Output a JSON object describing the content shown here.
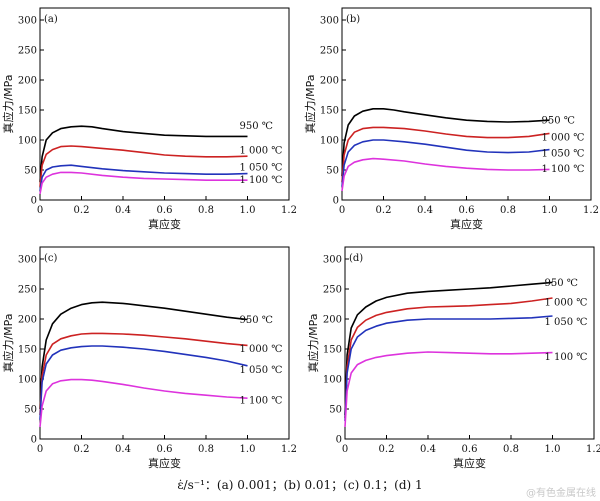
{
  "caption": "ε̇/s⁻¹：(a) 0.001；(b) 0.01；(c) 0.1；(d) 1",
  "watermark": "@有色金属在线",
  "chart_data": [
    {
      "type": "line",
      "panel_label": "(a)",
      "xlabel": "真应变",
      "ylabel": "真应力/MPa",
      "xlim": [
        0,
        1.2
      ],
      "ylim": [
        0,
        320
      ],
      "xticks": [
        "0",
        "0.2",
        "0.4",
        "0.6",
        "0.8",
        "1.0",
        "1.2"
      ],
      "yticks": [
        "0",
        "50",
        "100",
        "150",
        "200",
        "250",
        "300"
      ],
      "series": [
        {
          "name": "950 ℃",
          "color": "#000000",
          "x": [
            0,
            0.01,
            0.03,
            0.06,
            0.1,
            0.15,
            0.2,
            0.25,
            0.3,
            0.4,
            0.5,
            0.6,
            0.7,
            0.8,
            0.9,
            1.0
          ],
          "y": [
            30,
            72,
            100,
            112,
            119,
            122,
            123,
            122,
            119,
            114,
            111,
            108,
            107,
            106,
            106,
            106
          ]
        },
        {
          "name": "1 000 ℃",
          "color": "#cc2222",
          "x": [
            0,
            0.01,
            0.03,
            0.06,
            0.1,
            0.15,
            0.2,
            0.3,
            0.4,
            0.5,
            0.6,
            0.7,
            0.8,
            0.9,
            1.0
          ],
          "y": [
            22,
            58,
            76,
            84,
            89,
            90,
            89,
            86,
            83,
            79,
            75,
            73,
            72,
            72,
            73
          ]
        },
        {
          "name": "1 050 ℃",
          "color": "#2233bb",
          "x": [
            0,
            0.01,
            0.03,
            0.06,
            0.1,
            0.15,
            0.2,
            0.3,
            0.4,
            0.5,
            0.6,
            0.7,
            0.8,
            0.9,
            1.0
          ],
          "y": [
            15,
            38,
            50,
            55,
            57,
            58,
            56,
            52,
            49,
            47,
            45,
            44,
            43,
            43,
            44
          ]
        },
        {
          "name": "1 100 ℃",
          "color": "#dd33dd",
          "x": [
            0,
            0.01,
            0.03,
            0.06,
            0.1,
            0.15,
            0.2,
            0.3,
            0.4,
            0.5,
            0.6,
            0.7,
            0.8,
            0.9,
            1.0
          ],
          "y": [
            10,
            28,
            38,
            43,
            46,
            46,
            45,
            41,
            38,
            36,
            35,
            34,
            33,
            33,
            33
          ]
        }
      ]
    },
    {
      "type": "line",
      "panel_label": "(b)",
      "xlabel": "真应变",
      "ylabel": "真应力/MPa",
      "xlim": [
        0,
        1.2
      ],
      "ylim": [
        0,
        320
      ],
      "xticks": [
        "0",
        "0.2",
        "0.4",
        "0.6",
        "0.8",
        "1.0",
        "1.2"
      ],
      "yticks": [
        "0",
        "50",
        "100",
        "150",
        "200",
        "250",
        "300"
      ],
      "series": [
        {
          "name": "950 ℃",
          "color": "#000000",
          "x": [
            0,
            0.01,
            0.03,
            0.06,
            0.1,
            0.15,
            0.2,
            0.25,
            0.3,
            0.4,
            0.5,
            0.6,
            0.7,
            0.8,
            0.9,
            1.0
          ],
          "y": [
            40,
            95,
            125,
            140,
            148,
            152,
            152,
            150,
            147,
            142,
            137,
            133,
            131,
            130,
            131,
            133
          ]
        },
        {
          "name": "1 000 ℃",
          "color": "#cc2222",
          "x": [
            0,
            0.01,
            0.03,
            0.06,
            0.1,
            0.15,
            0.2,
            0.3,
            0.4,
            0.5,
            0.6,
            0.7,
            0.8,
            0.9,
            1.0
          ],
          "y": [
            30,
            75,
            100,
            113,
            119,
            121,
            121,
            119,
            115,
            110,
            106,
            104,
            104,
            106,
            111
          ]
        },
        {
          "name": "1 050 ℃",
          "color": "#2233bb",
          "x": [
            0,
            0.01,
            0.03,
            0.06,
            0.1,
            0.15,
            0.2,
            0.3,
            0.4,
            0.5,
            0.6,
            0.7,
            0.8,
            0.9,
            1.0
          ],
          "y": [
            22,
            58,
            80,
            91,
            97,
            100,
            100,
            97,
            93,
            88,
            83,
            80,
            79,
            80,
            84
          ]
        },
        {
          "name": "1 100 ℃",
          "color": "#dd33dd",
          "x": [
            0,
            0.01,
            0.03,
            0.06,
            0.1,
            0.15,
            0.2,
            0.3,
            0.4,
            0.5,
            0.6,
            0.7,
            0.8,
            0.9,
            1.0
          ],
          "y": [
            15,
            40,
            56,
            63,
            67,
            69,
            68,
            65,
            60,
            56,
            53,
            51,
            50,
            50,
            51
          ]
        }
      ]
    },
    {
      "type": "line",
      "panel_label": "(c)",
      "xlabel": "真应变",
      "ylabel": "真应力/MPa",
      "xlim": [
        0,
        1.2
      ],
      "ylim": [
        0,
        320
      ],
      "xticks": [
        "0",
        "0.2",
        "0.4",
        "0.6",
        "0.8",
        "1.0",
        "1.2"
      ],
      "yticks": [
        "0",
        "50",
        "100",
        "150",
        "200",
        "250",
        "300"
      ],
      "series": [
        {
          "name": "950 ℃",
          "color": "#000000",
          "x": [
            0,
            0.01,
            0.03,
            0.06,
            0.1,
            0.15,
            0.2,
            0.25,
            0.3,
            0.35,
            0.4,
            0.5,
            0.6,
            0.7,
            0.8,
            0.9,
            1.0
          ],
          "y": [
            50,
            120,
            165,
            192,
            208,
            218,
            224,
            227,
            228,
            227,
            226,
            222,
            218,
            213,
            208,
            203,
            199
          ]
        },
        {
          "name": "1 000 ℃",
          "color": "#cc2222",
          "x": [
            0,
            0.01,
            0.03,
            0.06,
            0.1,
            0.15,
            0.2,
            0.25,
            0.3,
            0.4,
            0.5,
            0.6,
            0.7,
            0.8,
            0.9,
            1.0
          ],
          "y": [
            40,
            105,
            140,
            158,
            167,
            172,
            175,
            176,
            176,
            175,
            173,
            170,
            167,
            163,
            159,
            156
          ]
        },
        {
          "name": "1 050 ℃",
          "color": "#2233bb",
          "x": [
            0,
            0.01,
            0.03,
            0.06,
            0.1,
            0.15,
            0.2,
            0.25,
            0.3,
            0.4,
            0.5,
            0.6,
            0.7,
            0.8,
            0.9,
            1.0
          ],
          "y": [
            32,
            95,
            125,
            140,
            148,
            152,
            154,
            155,
            155,
            153,
            150,
            146,
            141,
            136,
            130,
            122
          ]
        },
        {
          "name": "1 100 ℃",
          "color": "#dd33dd",
          "x": [
            0,
            0.01,
            0.03,
            0.06,
            0.1,
            0.15,
            0.2,
            0.25,
            0.3,
            0.4,
            0.5,
            0.6,
            0.7,
            0.8,
            0.9,
            1.0
          ],
          "y": [
            20,
            55,
            80,
            92,
            97,
            99,
            99,
            98,
            96,
            91,
            85,
            80,
            76,
            73,
            70,
            68
          ]
        }
      ]
    },
    {
      "type": "line",
      "panel_label": "(d)",
      "xlabel": "真应变",
      "ylabel": "真应力/MPa",
      "xlim": [
        0,
        1.2
      ],
      "ylim": [
        0,
        320
      ],
      "xticks": [
        "0",
        "0.2",
        "0.4",
        "0.6",
        "0.8",
        "1.0",
        "1.2"
      ],
      "yticks": [
        "0",
        "50",
        "100",
        "150",
        "200",
        "250",
        "300"
      ],
      "series": [
        {
          "name": "950 ℃",
          "color": "#000000",
          "x": [
            0,
            0.01,
            0.03,
            0.06,
            0.1,
            0.15,
            0.2,
            0.3,
            0.4,
            0.5,
            0.6,
            0.7,
            0.8,
            0.9,
            1.0
          ],
          "y": [
            40,
            140,
            185,
            207,
            220,
            230,
            236,
            243,
            246,
            248,
            250,
            252,
            255,
            258,
            261
          ]
        },
        {
          "name": "1 000 ℃",
          "color": "#cc2222",
          "x": [
            0,
            0.01,
            0.03,
            0.06,
            0.1,
            0.15,
            0.2,
            0.3,
            0.4,
            0.5,
            0.6,
            0.7,
            0.8,
            0.9,
            1.0
          ],
          "y": [
            35,
            120,
            165,
            186,
            198,
            206,
            211,
            217,
            220,
            221,
            222,
            224,
            226,
            230,
            235
          ]
        },
        {
          "name": "1 050 ℃",
          "color": "#2233bb",
          "x": [
            0,
            0.01,
            0.03,
            0.06,
            0.1,
            0.15,
            0.2,
            0.3,
            0.4,
            0.5,
            0.6,
            0.7,
            0.8,
            0.9,
            1.0
          ],
          "y": [
            30,
            110,
            150,
            170,
            181,
            188,
            193,
            198,
            200,
            200,
            200,
            200,
            201,
            202,
            205
          ]
        },
        {
          "name": "1 100 ℃",
          "color": "#dd33dd",
          "x": [
            0,
            0.01,
            0.03,
            0.06,
            0.1,
            0.15,
            0.2,
            0.3,
            0.4,
            0.5,
            0.6,
            0.7,
            0.8,
            0.9,
            1.0
          ],
          "y": [
            20,
            80,
            110,
            124,
            131,
            136,
            139,
            143,
            145,
            144,
            143,
            142,
            142,
            143,
            144
          ]
        }
      ]
    }
  ]
}
